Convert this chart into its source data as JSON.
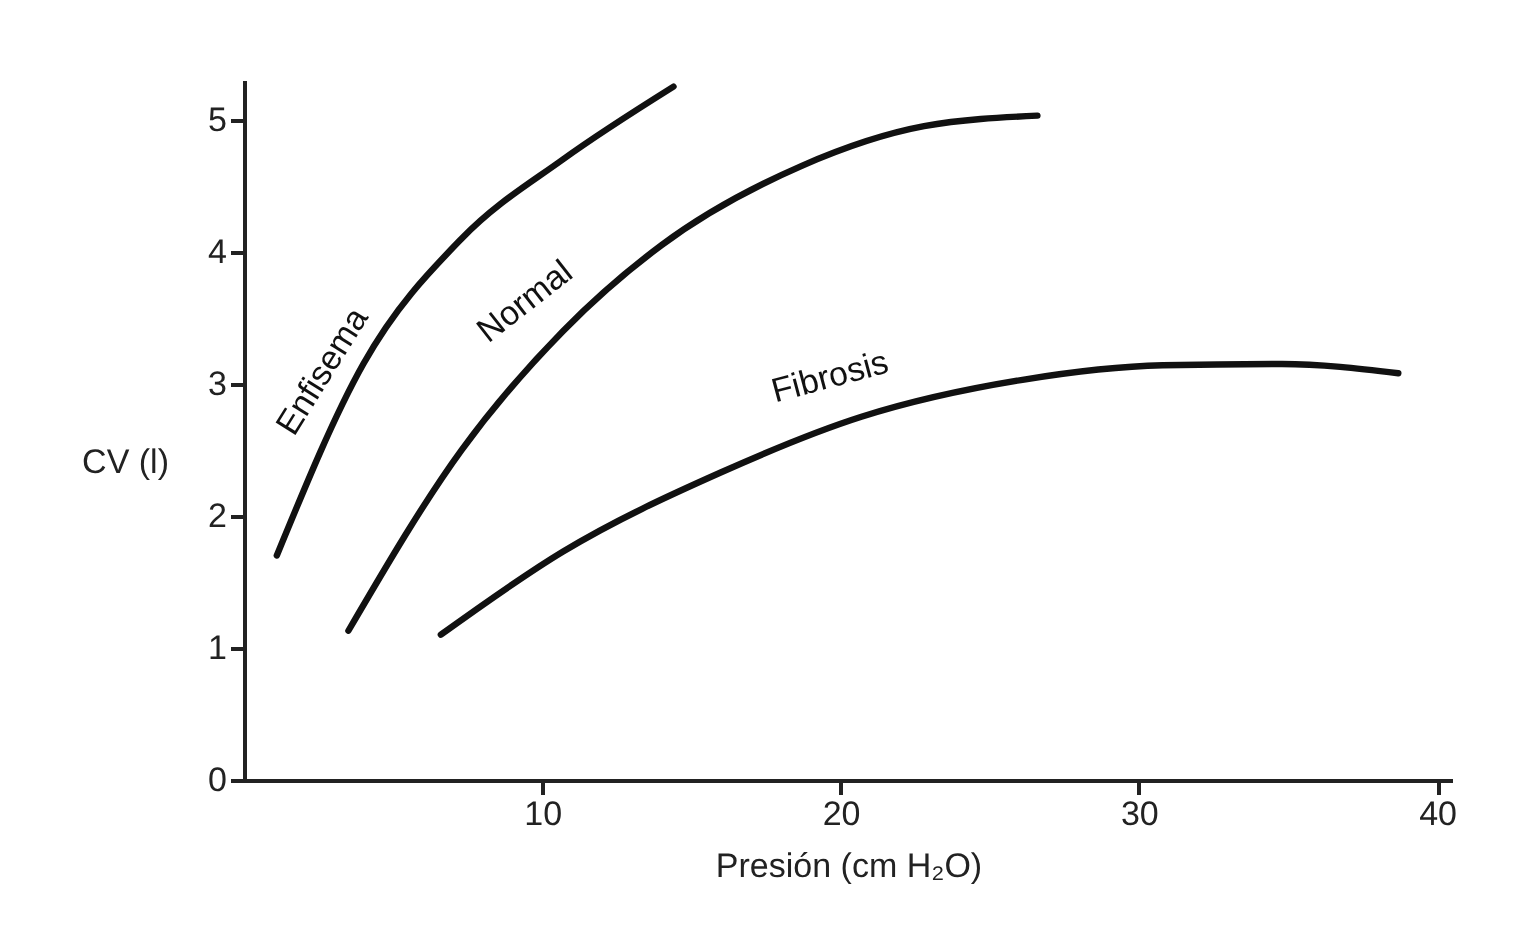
{
  "chart_data": {
    "type": "line",
    "xlabel": "Presión (cm H₂O)",
    "ylabel": "CV (l)",
    "xlim": [
      0,
      40.5
    ],
    "ylim": [
      0,
      5.3
    ],
    "xticks": [
      10,
      20,
      30,
      40
    ],
    "yticks": [
      0,
      1,
      2,
      3,
      4,
      5
    ],
    "grid": false,
    "marker": "none",
    "line_style": "solid",
    "series": [
      {
        "name": "Enfisema",
        "color": "#111111",
        "x": [
          1.1,
          4,
          7.3,
          10.7,
          14.4
        ],
        "values": [
          1.7,
          3.15,
          4.1,
          4.7,
          5.25
        ]
      },
      {
        "name": "Normal",
        "color": "#111111",
        "x": [
          3.5,
          7.3,
          10.7,
          14,
          18.7,
          22.8,
          26.6
        ],
        "values": [
          1.13,
          2.5,
          3.4,
          4.05,
          4.65,
          4.95,
          5.03
        ]
      },
      {
        "name": "Fibrosis",
        "color": "#111111",
        "x": [
          6.6,
          10.7,
          16,
          20.7,
          26.1,
          30.8,
          34.8,
          38.7
        ],
        "values": [
          1.1,
          1.73,
          2.33,
          2.75,
          3.03,
          3.14,
          3.15,
          3.08
        ]
      }
    ]
  }
}
